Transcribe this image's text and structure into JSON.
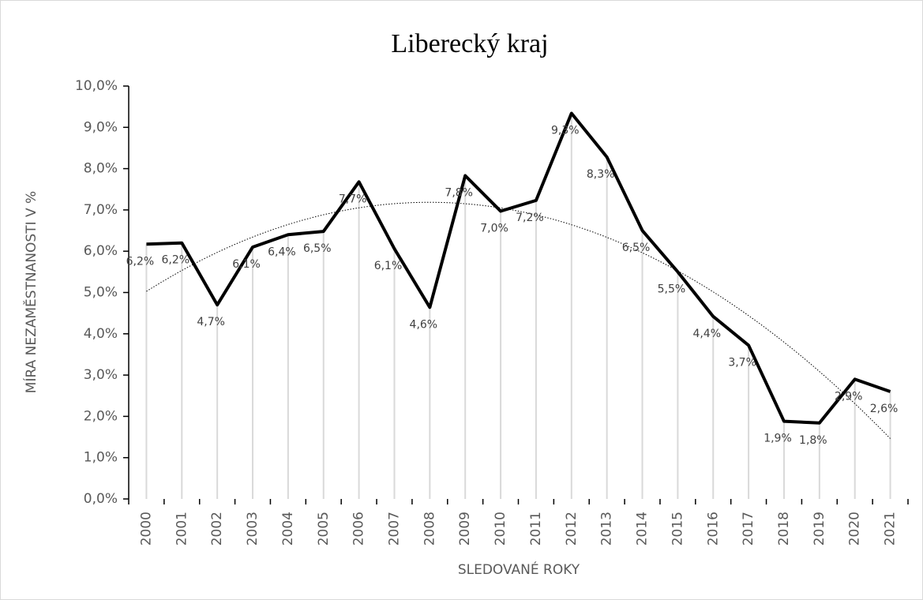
{
  "chart_data": {
    "type": "line",
    "title": "Liberecký kraj",
    "x_label": "SLEDOVANÉ ROKY",
    "y_label": "MÍRA NEZAMĚSTNANOSTI V %",
    "categories": [
      "2000",
      "2001",
      "2002",
      "2003",
      "2004",
      "2005",
      "2006",
      "2007",
      "2008",
      "2009",
      "2010",
      "2011",
      "2012",
      "2013",
      "2014",
      "2015",
      "2016",
      "2017",
      "2018",
      "2019",
      "2020",
      "2021"
    ],
    "series": [
      {
        "name": "Míra nezaměstnanosti",
        "color": "#000000",
        "values": [
          6.17,
          6.2,
          4.7,
          6.1,
          6.4,
          6.48,
          7.68,
          6.06,
          4.64,
          7.83,
          6.97,
          7.23,
          9.34,
          8.28,
          6.5,
          5.5,
          4.42,
          3.72,
          1.88,
          1.84,
          2.9,
          2.6
        ],
        "value_labels": [
          "6,2%",
          "6,2%",
          "4,7%",
          "6,1%",
          "6,4%",
          "6,5%",
          "7,7%",
          "6,1%",
          "4,6%",
          "7,8%",
          "7,0%",
          "7,2%",
          "9,3%",
          "8,3%",
          "6,5%",
          "5,5%",
          "4,4%",
          "3,7%",
          "1,9%",
          "1,8%",
          "2,9%",
          "2,6%"
        ]
      }
    ],
    "ylim": [
      0,
      10
    ],
    "yticks": [
      {
        "value": 0,
        "label": "0,0%"
      },
      {
        "value": 1,
        "label": "1,0%"
      },
      {
        "value": 2,
        "label": "2,0%"
      },
      {
        "value": 3,
        "label": "3,0%"
      },
      {
        "value": 4,
        "label": "4,0%"
      },
      {
        "value": 5,
        "label": "5,0%"
      },
      {
        "value": 6,
        "label": "6,0%"
      },
      {
        "value": 7,
        "label": "7,0%"
      },
      {
        "value": 8,
        "label": "8,0%"
      },
      {
        "value": 9,
        "label": "9,0%"
      },
      {
        "value": 10,
        "label": "10,0%"
      }
    ],
    "drop_lines": true,
    "trendline": "polynomial"
  }
}
